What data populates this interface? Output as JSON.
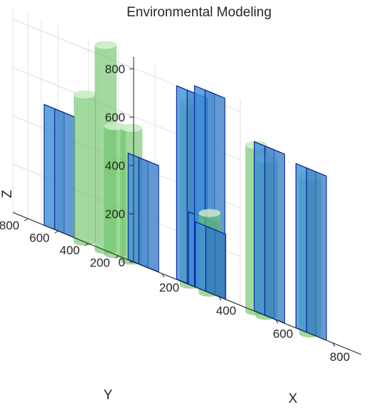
{
  "chart_data": {
    "type": "3d-bar",
    "title": "Environmental Modeling",
    "xlabel": "X",
    "ylabel": "Y",
    "zlabel": "Z",
    "xlim": [
      100,
      900
    ],
    "ylim": [
      100,
      900
    ],
    "zlim": [
      0,
      850
    ],
    "xticks": [
      200,
      400,
      600,
      800
    ],
    "yticks": [
      200,
      400,
      600,
      800
    ],
    "zticks": [
      0,
      200,
      400,
      600,
      800
    ],
    "grid": true,
    "colors": {
      "box_face": "#3d8fd6",
      "box_top": "#7fd0ff",
      "box_edge": "#0a1e9e",
      "cylinder_face": "#6ec46a",
      "cylinder_top": "#c8ebc4"
    },
    "series": [
      {
        "name": "",
        "shape": "box",
        "items": [
          {
            "x": 200,
            "y": 780,
            "height": 500
          },
          {
            "x": 400,
            "y": 600,
            "height": 440
          },
          {
            "x": 400,
            "y": 200,
            "height": 300
          },
          {
            "x": 450,
            "y": 250,
            "height": 270
          },
          {
            "x": 650,
            "y": 750,
            "height": 800
          },
          {
            "x": 750,
            "y": 820,
            "height": 830
          },
          {
            "x": 790,
            "y": 500,
            "height": 700
          },
          {
            "x": 820,
            "y": 280,
            "height": 680
          }
        ]
      },
      {
        "name": "",
        "shape": "cylinder",
        "items": [
          {
            "x": 300,
            "y": 800,
            "height": 610
          },
          {
            "x": 400,
            "y": 850,
            "height": 850
          },
          {
            "x": 300,
            "y": 600,
            "height": 530
          },
          {
            "x": 400,
            "y": 680,
            "height": 550
          },
          {
            "x": 500,
            "y": 350,
            "height": 330
          },
          {
            "x": 630,
            "y": 720,
            "height": 760
          },
          {
            "x": 700,
            "y": 350,
            "height": 650
          },
          {
            "x": 850,
            "y": 700,
            "height": 690
          },
          {
            "x": 880,
            "y": 400,
            "height": 650
          }
        ]
      }
    ]
  }
}
